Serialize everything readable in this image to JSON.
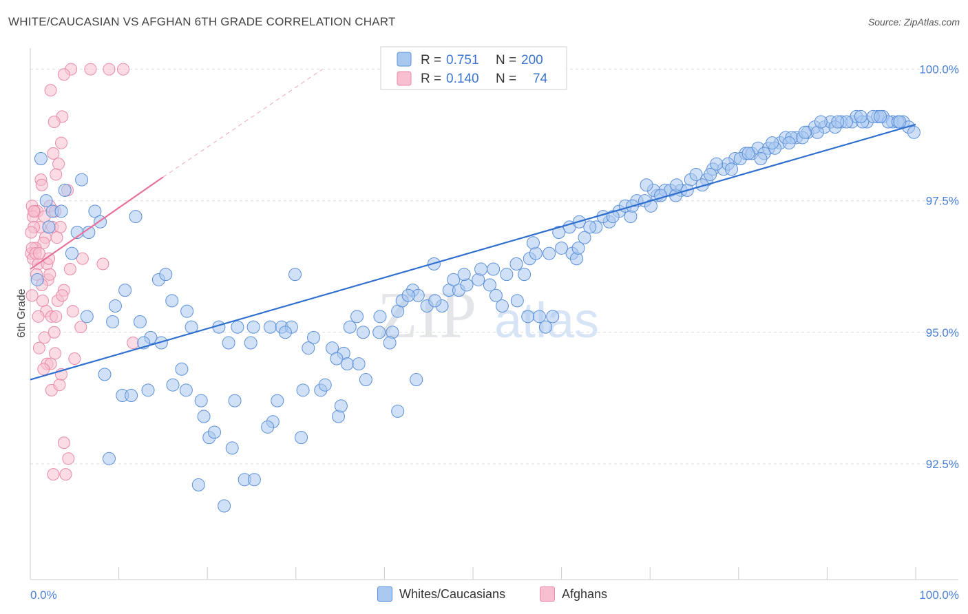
{
  "title": "WHITE/CAUCASIAN VS AFGHAN 6TH GRADE CORRELATION CHART",
  "source": "Source: ZipAtlas.com",
  "watermark": {
    "zip": "ZIP",
    "atlas": "atlas"
  },
  "legend_top": {
    "rows": [
      {
        "r_label": "R =",
        "r_value": "0.751",
        "n_label": "N =",
        "n_value": "200"
      },
      {
        "r_label": "R =",
        "r_value": "0.140",
        "n_label": "N =",
        "n_value": "74"
      }
    ]
  },
  "legend_bottom": {
    "items": [
      "Whites/Caucasians",
      "Afghans"
    ]
  },
  "colors": {
    "blue_fill": "#a9c8f0",
    "blue_stroke": "#5b8fd8",
    "blue_line": "#2f6fcf",
    "pink_fill": "#f7bfd0",
    "pink_stroke": "#e88aa8",
    "pink_line": "#e8709a",
    "grid": "#d9dde3",
    "tick_text": "#4a7fd4"
  },
  "chart_data": {
    "type": "scatter",
    "title": "WHITE/CAUCASIAN VS AFGHAN 6TH GRADE CORRELATION CHART",
    "xlabel": "",
    "ylabel": "6th Grade",
    "xlim": [
      0,
      100
    ],
    "ylim": [
      90.3,
      100.4
    ],
    "x_tick_labels": [
      "0.0%",
      "100.0%"
    ],
    "y_ticks": [
      92.5,
      95.0,
      97.5,
      100.0
    ],
    "y_tick_labels": [
      "92.5%",
      "95.0%",
      "97.5%",
      "100.0%"
    ],
    "grid": "horizontal dashed",
    "legend_placement": "top-center and bottom",
    "series": [
      {
        "name": "Whites/Caucasians",
        "r": 0.751,
        "n": 200,
        "trend": {
          "x": [
            0,
            100
          ],
          "y": [
            94.1,
            98.95
          ]
        },
        "points": [
          [
            1.2,
            98.3
          ],
          [
            1.8,
            97.5
          ],
          [
            2.5,
            97.3
          ],
          [
            3.5,
            97.3
          ],
          [
            2.1,
            97.0
          ],
          [
            3.9,
            97.7
          ],
          [
            5.8,
            97.9
          ],
          [
            7.3,
            97.3
          ],
          [
            5.3,
            96.9
          ],
          [
            6.6,
            96.9
          ],
          [
            7.9,
            97.1
          ],
          [
            4.7,
            96.5
          ],
          [
            0.8,
            96.0
          ],
          [
            11.9,
            97.2
          ],
          [
            14.5,
            96.0
          ],
          [
            15.3,
            96.1
          ],
          [
            10.7,
            95.8
          ],
          [
            9.6,
            95.5
          ],
          [
            16.0,
            95.6
          ],
          [
            17.7,
            95.4
          ],
          [
            6.4,
            95.3
          ],
          [
            9.3,
            95.2
          ],
          [
            12.4,
            95.2
          ],
          [
            18.2,
            95.1
          ],
          [
            21.3,
            95.1
          ],
          [
            23.4,
            95.1
          ],
          [
            25.2,
            95.1
          ],
          [
            27.1,
            95.1
          ],
          [
            28.4,
            95.1
          ],
          [
            29.5,
            95.1
          ],
          [
            28.8,
            95.0
          ],
          [
            13.6,
            94.9
          ],
          [
            14.8,
            94.8
          ],
          [
            12.8,
            94.8
          ],
          [
            22.4,
            94.8
          ],
          [
            24.9,
            94.8
          ],
          [
            32.0,
            94.9
          ],
          [
            31.4,
            94.7
          ],
          [
            34.1,
            94.7
          ],
          [
            35.4,
            94.6
          ],
          [
            34.6,
            94.5
          ],
          [
            35.8,
            94.4
          ],
          [
            37.1,
            94.4
          ],
          [
            29.9,
            96.1
          ],
          [
            39.5,
            95.3
          ],
          [
            36.9,
            95.3
          ],
          [
            36.1,
            95.1
          ],
          [
            37.6,
            95.0
          ],
          [
            39.4,
            95.0
          ],
          [
            40.9,
            95.0
          ],
          [
            40.6,
            94.8
          ],
          [
            41.5,
            95.4
          ],
          [
            42.0,
            95.6
          ],
          [
            43.2,
            95.8
          ],
          [
            43.8,
            95.7
          ],
          [
            42.7,
            95.7
          ],
          [
            44.8,
            95.5
          ],
          [
            46.5,
            95.5
          ],
          [
            45.7,
            95.6
          ],
          [
            47.3,
            95.8
          ],
          [
            48.4,
            95.8
          ],
          [
            49.3,
            95.9
          ],
          [
            50.6,
            96.0
          ],
          [
            51.9,
            95.9
          ],
          [
            52.6,
            95.7
          ],
          [
            53.3,
            95.5
          ],
          [
            55.0,
            95.6
          ],
          [
            56.2,
            95.3
          ],
          [
            57.5,
            95.3
          ],
          [
            58.2,
            95.1
          ],
          [
            59.0,
            95.3
          ],
          [
            8.4,
            94.2
          ],
          [
            10.4,
            93.8
          ],
          [
            11.4,
            93.8
          ],
          [
            13.3,
            93.9
          ],
          [
            16.1,
            94.0
          ],
          [
            17.1,
            94.3
          ],
          [
            17.6,
            93.9
          ],
          [
            19.3,
            93.7
          ],
          [
            19.6,
            93.4
          ],
          [
            20.2,
            93.0
          ],
          [
            20.8,
            93.1
          ],
          [
            23.1,
            93.7
          ],
          [
            22.8,
            92.8
          ],
          [
            24.2,
            92.2
          ],
          [
            25.3,
            92.2
          ],
          [
            27.4,
            93.3
          ],
          [
            26.8,
            93.2
          ],
          [
            27.9,
            93.7
          ],
          [
            30.6,
            93.0
          ],
          [
            30.8,
            93.9
          ],
          [
            32.8,
            93.9
          ],
          [
            33.3,
            94.0
          ],
          [
            34.8,
            93.4
          ],
          [
            35.1,
            93.6
          ],
          [
            37.9,
            94.1
          ],
          [
            41.5,
            93.5
          ],
          [
            43.6,
            94.1
          ],
          [
            19.0,
            92.1
          ],
          [
            21.9,
            91.7
          ],
          [
            8.9,
            92.6
          ],
          [
            45.6,
            96.3
          ],
          [
            47.8,
            96.0
          ],
          [
            49.0,
            96.1
          ],
          [
            50.9,
            96.2
          ],
          [
            52.3,
            96.2
          ],
          [
            53.8,
            96.1
          ],
          [
            54.9,
            96.3
          ],
          [
            56.4,
            96.4
          ],
          [
            57.1,
            96.5
          ],
          [
            58.6,
            96.5
          ],
          [
            60.0,
            96.6
          ],
          [
            61.2,
            96.5
          ],
          [
            61.7,
            96.4
          ],
          [
            62.6,
            96.8
          ],
          [
            63.9,
            97.0
          ],
          [
            65.4,
            97.1
          ],
          [
            66.5,
            97.3
          ],
          [
            67.8,
            97.2
          ],
          [
            68.5,
            97.5
          ],
          [
            69.4,
            97.5
          ],
          [
            70.8,
            97.6
          ],
          [
            71.7,
            97.7
          ],
          [
            72.3,
            97.7
          ],
          [
            73.5,
            97.7
          ],
          [
            74.6,
            97.9
          ],
          [
            75.2,
            98.0
          ],
          [
            76.4,
            97.9
          ],
          [
            77.1,
            98.1
          ],
          [
            78.3,
            98.1
          ],
          [
            79.6,
            98.3
          ],
          [
            80.8,
            98.4
          ],
          [
            81.5,
            98.4
          ],
          [
            82.2,
            98.5
          ],
          [
            83.4,
            98.5
          ],
          [
            84.7,
            98.6
          ],
          [
            85.3,
            98.7
          ],
          [
            86.5,
            98.7
          ],
          [
            87.8,
            98.8
          ],
          [
            88.6,
            98.9
          ],
          [
            89.7,
            98.9
          ],
          [
            90.4,
            99.0
          ],
          [
            91.6,
            99.0
          ],
          [
            92.8,
            99.0
          ],
          [
            93.3,
            99.1
          ],
          [
            94.5,
            99.0
          ],
          [
            95.7,
            99.1
          ],
          [
            96.3,
            99.1
          ],
          [
            97.4,
            99.0
          ],
          [
            98.6,
            99.0
          ],
          [
            99.2,
            98.9
          ],
          [
            55.8,
            96.1
          ],
          [
            60.9,
            97.0
          ],
          [
            62.0,
            97.1
          ],
          [
            64.7,
            97.2
          ],
          [
            67.2,
            97.4
          ],
          [
            70.1,
            97.4
          ],
          [
            72.9,
            97.6
          ],
          [
            74.2,
            97.7
          ],
          [
            75.9,
            97.8
          ],
          [
            78.8,
            98.2
          ],
          [
            80.2,
            98.3
          ],
          [
            81.1,
            98.4
          ],
          [
            82.9,
            98.4
          ],
          [
            84.1,
            98.5
          ],
          [
            86.0,
            98.7
          ],
          [
            87.2,
            98.7
          ],
          [
            88.9,
            98.8
          ],
          [
            90.9,
            98.9
          ],
          [
            92.2,
            99.0
          ],
          [
            94.0,
            99.0
          ],
          [
            95.2,
            99.1
          ],
          [
            96.9,
            99.0
          ],
          [
            98.0,
            99.0
          ],
          [
            56.8,
            96.7
          ],
          [
            59.7,
            96.9
          ],
          [
            61.9,
            96.6
          ],
          [
            63.2,
            97.0
          ],
          [
            65.8,
            97.2
          ],
          [
            68.0,
            97.4
          ],
          [
            70.4,
            97.7
          ],
          [
            73.0,
            97.8
          ],
          [
            76.8,
            98.0
          ],
          [
            79.2,
            98.1
          ],
          [
            83.8,
            98.6
          ],
          [
            85.7,
            98.6
          ],
          [
            87.5,
            98.8
          ],
          [
            89.3,
            99.0
          ],
          [
            91.2,
            99.0
          ],
          [
            93.8,
            99.1
          ],
          [
            96.0,
            99.1
          ],
          [
            98.2,
            99.0
          ],
          [
            99.8,
            98.8
          ],
          [
            69.6,
            97.8
          ],
          [
            71.2,
            97.6
          ],
          [
            77.5,
            98.2
          ],
          [
            82.5,
            98.3
          ]
        ]
      },
      {
        "name": "Afghans",
        "r": 0.14,
        "n": 74,
        "trend": {
          "x": [
            0,
            15
          ],
          "y": [
            96.2,
            97.95
          ]
        },
        "trend_extension": {
          "x": [
            15,
            33
          ],
          "y": [
            97.95,
            100.0
          ]
        },
        "points": [
          [
            4.6,
            100.0
          ],
          [
            6.8,
            100.0
          ],
          [
            8.9,
            100.0
          ],
          [
            10.5,
            100.0
          ],
          [
            3.8,
            99.9
          ],
          [
            2.3,
            99.6
          ],
          [
            3.6,
            99.1
          ],
          [
            2.7,
            99.0
          ],
          [
            3.5,
            98.6
          ],
          [
            2.6,
            98.4
          ],
          [
            3.2,
            98.2
          ],
          [
            2.9,
            98.0
          ],
          [
            1.2,
            97.9
          ],
          [
            1.3,
            97.8
          ],
          [
            4.2,
            97.7
          ],
          [
            0.2,
            97.4
          ],
          [
            0.5,
            97.3
          ],
          [
            0.8,
            97.3
          ],
          [
            0.3,
            97.2
          ],
          [
            2.2,
            97.4
          ],
          [
            2.8,
            97.3
          ],
          [
            1.6,
            97.2
          ],
          [
            1.1,
            97.0
          ],
          [
            2.5,
            97.0
          ],
          [
            3.4,
            97.0
          ],
          [
            0.4,
            97.0
          ],
          [
            1.7,
            96.8
          ],
          [
            1.5,
            96.7
          ],
          [
            3.0,
            96.8
          ],
          [
            0.6,
            96.6
          ],
          [
            0.1,
            96.5
          ],
          [
            0.3,
            96.4
          ],
          [
            0.9,
            96.3
          ],
          [
            1.9,
            96.3
          ],
          [
            2.1,
            96.4
          ],
          [
            5.9,
            96.4
          ],
          [
            8.2,
            96.3
          ],
          [
            4.5,
            96.2
          ],
          [
            0.7,
            96.1
          ],
          [
            2.0,
            96.0
          ],
          [
            1.3,
            95.9
          ],
          [
            3.8,
            95.8
          ],
          [
            0.2,
            95.7
          ],
          [
            1.4,
            95.6
          ],
          [
            3.1,
            95.6
          ],
          [
            1.8,
            95.4
          ],
          [
            2.4,
            95.3
          ],
          [
            2.9,
            95.3
          ],
          [
            5.7,
            95.1
          ],
          [
            1.6,
            94.9
          ],
          [
            11.6,
            94.8
          ],
          [
            1.0,
            94.7
          ],
          [
            2.8,
            94.6
          ],
          [
            5.0,
            94.5
          ],
          [
            1.9,
            94.4
          ],
          [
            2.3,
            94.4
          ],
          [
            3.5,
            94.2
          ],
          [
            2.4,
            93.9
          ],
          [
            3.8,
            92.9
          ],
          [
            4.3,
            92.6
          ],
          [
            2.6,
            92.3
          ],
          [
            4.0,
            92.3
          ],
          [
            0.2,
            96.6
          ],
          [
            0.6,
            96.5
          ],
          [
            1.0,
            96.5
          ],
          [
            0.4,
            97.3
          ],
          [
            0.1,
            96.9
          ],
          [
            2.2,
            96.1
          ],
          [
            3.6,
            95.7
          ],
          [
            0.9,
            95.3
          ],
          [
            2.7,
            95.0
          ],
          [
            4.8,
            95.4
          ],
          [
            1.5,
            94.3
          ],
          [
            3.3,
            94.0
          ]
        ]
      }
    ]
  }
}
